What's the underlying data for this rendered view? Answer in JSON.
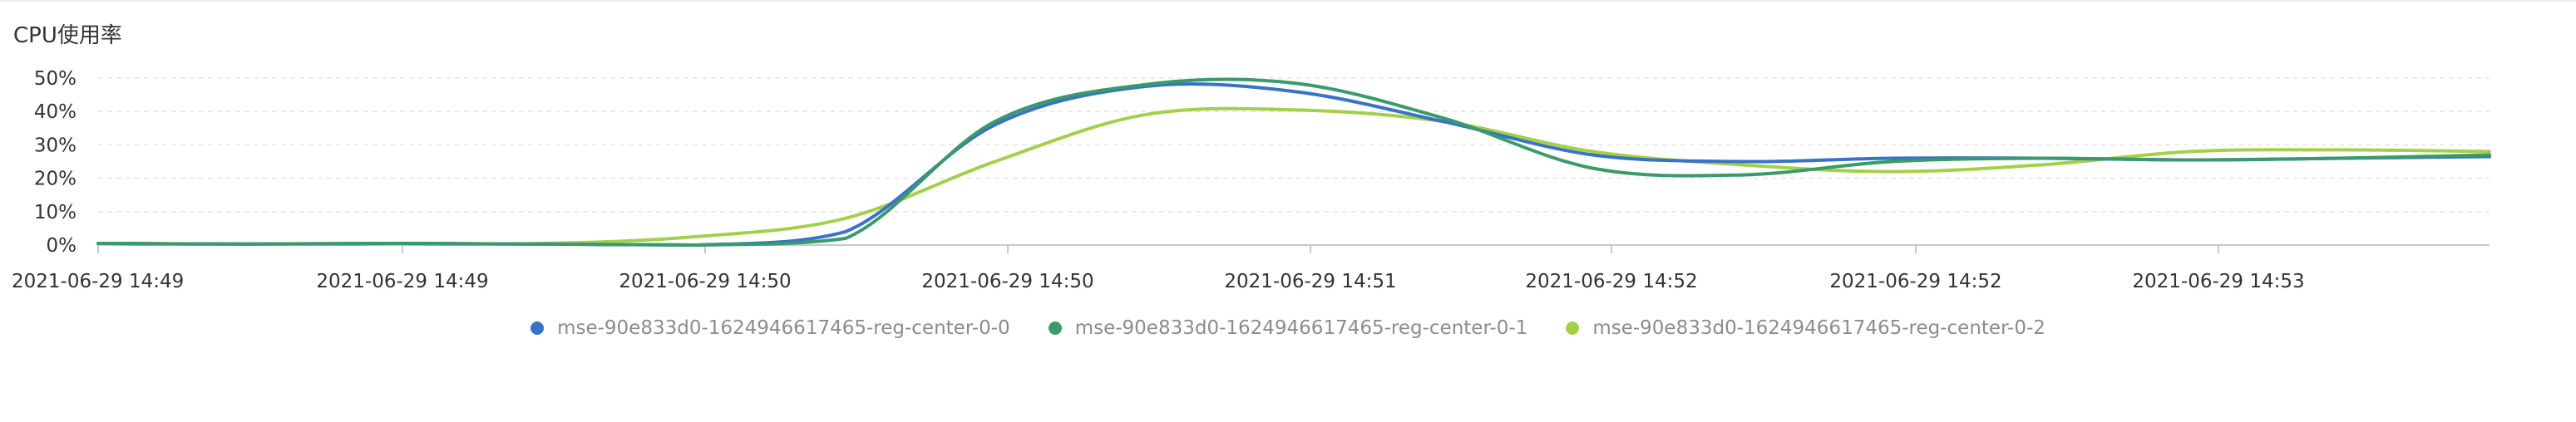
{
  "chart_data": {
    "type": "line",
    "title": "CPU使用率",
    "ylim": [
      0,
      50
    ],
    "yticks": [
      "0%",
      "10%",
      "20%",
      "30%",
      "40%",
      "50%"
    ],
    "ytick_values": [
      0,
      10,
      20,
      30,
      40,
      50
    ],
    "x_tick_labels": [
      "2021-06-29 14:49",
      "2021-06-29 14:49",
      "2021-06-29 14:50",
      "2021-06-29 14:50",
      "2021-06-29 14:51",
      "2021-06-29 14:52",
      "2021-06-29 14:52",
      "2021-06-29 14:53"
    ],
    "grid": true,
    "legend_position": "bottom-center",
    "x": [
      0,
      0.5,
      1,
      1.5,
      2,
      2.5,
      3,
      3.5,
      4,
      4.5,
      5,
      5.5,
      6,
      6.5,
      7,
      7.5,
      8
    ],
    "series": [
      {
        "name": "mse-90e833d0-1624946617465-reg-center-0-0",
        "color": "#3873c8",
        "values": [
          0.5,
          0.3,
          0.5,
          0.3,
          0,
          4,
          36,
          47.5,
          46,
          37,
          27,
          25,
          26,
          26,
          25.5,
          26,
          26.5
        ]
      },
      {
        "name": "mse-90e833d0-1624946617465-reg-center-0-1",
        "color": "#3a9a6a",
        "values": [
          0.5,
          0.3,
          0.5,
          0.3,
          0,
          2,
          37,
          48,
          48.5,
          38,
          23,
          21,
          25,
          26,
          25.5,
          26,
          27
        ]
      },
      {
        "name": "mse-90e833d0-1624946617465-reg-center-0-2",
        "color": "#a4cf4b",
        "values": [
          0.5,
          0.3,
          0.5,
          0.5,
          2.5,
          8,
          25,
          39,
          40.5,
          37,
          28,
          24,
          22,
          24,
          28,
          28.5,
          28
        ]
      }
    ]
  }
}
